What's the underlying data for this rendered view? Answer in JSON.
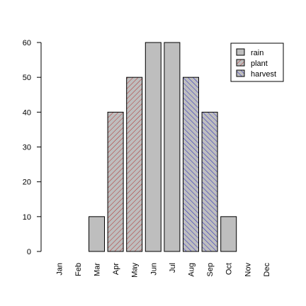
{
  "chart_data": {
    "type": "bar",
    "categories": [
      "Jan",
      "Feb",
      "Mar",
      "Apr",
      "May",
      "Jun",
      "Jul",
      "Aug",
      "Sep",
      "Oct",
      "Nov",
      "Dec"
    ],
    "values": [
      0,
      0,
      10,
      40,
      50,
      60,
      60,
      50,
      40,
      10,
      0,
      0
    ],
    "groups": [
      "rain",
      "rain",
      "rain",
      "plant",
      "plant",
      "rain",
      "rain",
      "harvest",
      "harvest",
      "rain",
      "rain",
      "rain"
    ],
    "legend": {
      "position": "top-right",
      "entries": [
        {
          "label": "rain",
          "fill": "#bebebe",
          "pattern": "none"
        },
        {
          "label": "plant",
          "fill": "#bebebe",
          "pattern": "hatch-up",
          "hatch_color": "#b03030"
        },
        {
          "label": "harvest",
          "fill": "#bebebe",
          "pattern": "hatch-down",
          "hatch_color": "#2020c0"
        }
      ]
    },
    "title": "",
    "xlabel": "",
    "ylabel": "",
    "ylim": [
      0,
      60
    ],
    "yticks": [
      0,
      10,
      20,
      30,
      40,
      50,
      60
    ],
    "grid": false,
    "colors": {
      "bar": "#bebebe",
      "outline": "#000000",
      "plant_hatch": "#b03030",
      "harvest_hatch": "#2020c0"
    }
  }
}
